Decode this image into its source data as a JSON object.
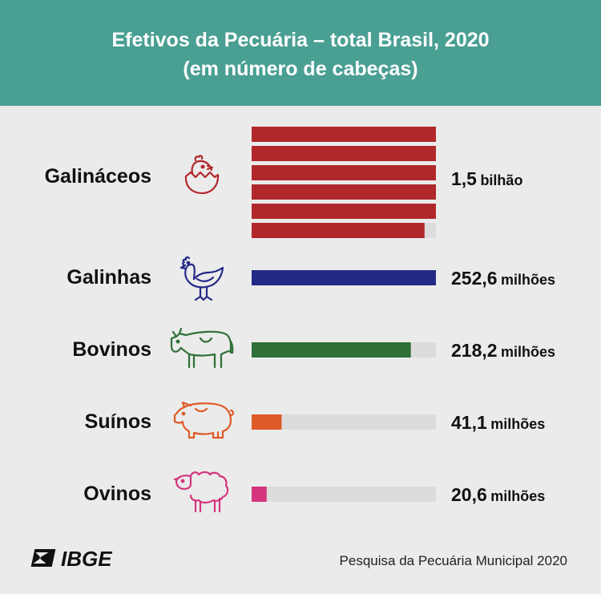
{
  "header": {
    "title_line1": "Efetivos da Pecuária – total Brasil, 2020",
    "title_line2": "(em número de cabeças)"
  },
  "chart_data": {
    "type": "bar",
    "title": "Efetivos da Pecuária – total Brasil, 2020",
    "subtitle": "(em número de cabeças)",
    "categories": [
      "Galináceos",
      "Galinhas",
      "Bovinos",
      "Suínos",
      "Ovinos"
    ],
    "values": [
      1500000000,
      252600000,
      218200000,
      41100000,
      20600000
    ],
    "value_labels": [
      {
        "num": "1,5",
        "unit": "bilhão"
      },
      {
        "num": "252,6",
        "unit": "milhões"
      },
      {
        "num": "218,2",
        "unit": "milhões"
      },
      {
        "num": "41,1",
        "unit": "milhões"
      },
      {
        "num": "20,6",
        "unit": "milhões"
      }
    ],
    "bar_scale_max": 252600000,
    "colors": [
      "#b1282b",
      "#232a86",
      "#2f6f38",
      "#de5a26",
      "#d4357e"
    ],
    "track_color": "#dcdcdc",
    "icons": [
      "chick-hatching-icon",
      "hen-icon",
      "cow-icon",
      "pig-icon",
      "sheep-icon"
    ]
  },
  "footer": {
    "logo_text": "IBGE",
    "source": "Pesquisa da Pecuária Municipal 2020"
  }
}
